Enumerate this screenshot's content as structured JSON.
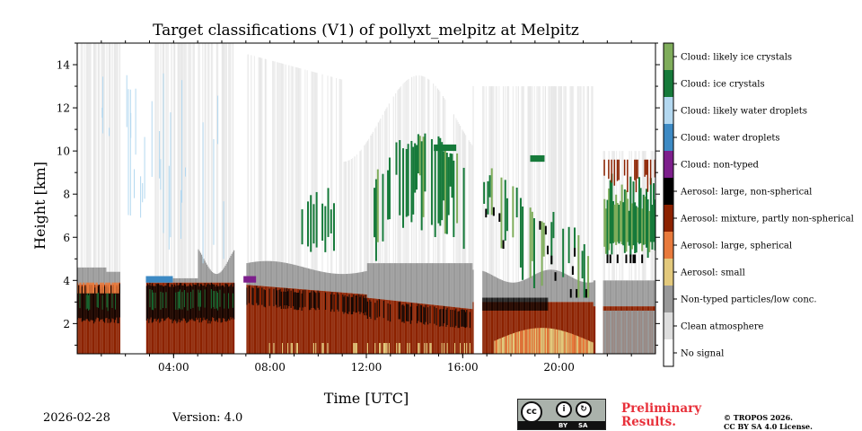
{
  "chart_data": {
    "type": "heatmap",
    "title": "Target classifications (V1) of pollyxt_melpitz at Melpitz",
    "xlabel": "Time [UTC]",
    "ylabel": "Height [km]",
    "xlim": [
      0,
      24
    ],
    "ylim": [
      0.6,
      15
    ],
    "x_ticks": [
      4,
      8,
      12,
      16,
      20
    ],
    "x_tick_labels": [
      "04:00",
      "08:00",
      "12:00",
      "16:00",
      "20:00"
    ],
    "y_ticks": [
      2,
      4,
      6,
      8,
      10,
      12,
      14
    ],
    "y_tick_labels": [
      "2",
      "4",
      "6",
      "8",
      "10",
      "12",
      "14"
    ],
    "colorbar": [
      {
        "label": "Cloud: likely ice crystals",
        "color": "#7fad5b"
      },
      {
        "label": "Cloud: ice crystals",
        "color": "#167a3a"
      },
      {
        "label": "Cloud: likely water droplets",
        "color": "#b3d8f0"
      },
      {
        "label": "Cloud: water droplets",
        "color": "#3d8ac4"
      },
      {
        "label": "Cloud: non-typed",
        "color": "#7d1f8c"
      },
      {
        "label": "Aerosol: large, non-spherical",
        "color": "#000000"
      },
      {
        "label": "Aerosol: mixture, partly non-spherical",
        "color": "#8c2200"
      },
      {
        "label": "Aerosol: large, spherical",
        "color": "#e87a3c"
      },
      {
        "label": "Aerosol: small",
        "color": "#e3c97c"
      },
      {
        "label": "Non-typed particles/low conc.",
        "color": "#999999"
      },
      {
        "label": "Clean atmosphere",
        "color": "#dddddd"
      },
      {
        "label": "No signal",
        "color": "#ffffff"
      }
    ],
    "no_signal_gaps_utc": [
      [
        1.75,
        2.85
      ],
      [
        5.0,
        5.0
      ],
      [
        6.5,
        7.0
      ],
      [
        16.45,
        16.8
      ],
      [
        21.5,
        21.8
      ]
    ],
    "features": [
      {
        "class": "Aerosol: mixture, partly non-spherical",
        "t_start": 0.0,
        "t_end": 24.0,
        "h_bottom": 0.6,
        "h_top": 4.0
      },
      {
        "class": "Aerosol: large, non-spherical",
        "t_start": 0.0,
        "t_end": 6.5,
        "h_bottom": 2.0,
        "h_top": 3.8
      },
      {
        "class": "Non-typed particles/low conc.",
        "t_start": 0.0,
        "t_end": 24.0,
        "h_bottom": 2.5,
        "h_top": 5.0
      },
      {
        "class": "Cloud: ice crystals",
        "t_start": 9.2,
        "t_end": 16.4,
        "h_bottom": 5.5,
        "h_top": 10.4
      },
      {
        "class": "Cloud: ice crystals",
        "t_start": 16.8,
        "t_end": 21.4,
        "h_bottom": 3.0,
        "h_top": 8.5
      },
      {
        "class": "Cloud: ice crystals",
        "t_start": 21.8,
        "t_end": 24.0,
        "h_bottom": 4.5,
        "h_top": 9.5
      },
      {
        "class": "Aerosol: large, spherical",
        "t_start": 17.3,
        "t_end": 21.4,
        "h_bottom": 0.6,
        "h_top": 1.8
      },
      {
        "class": "Cloud: non-typed",
        "t_start": 6.9,
        "t_end": 7.7,
        "h_bottom": 3.8,
        "h_top": 4.3
      }
    ]
  },
  "footer": {
    "date": "2026-02-28",
    "version": "Version: 4.0",
    "preliminary": "Preliminary\nResults.",
    "copyright": "© TROPOS 2026.\nCC BY SA 4.0 License.",
    "badge_by": "BY",
    "badge_sa": "SA"
  }
}
